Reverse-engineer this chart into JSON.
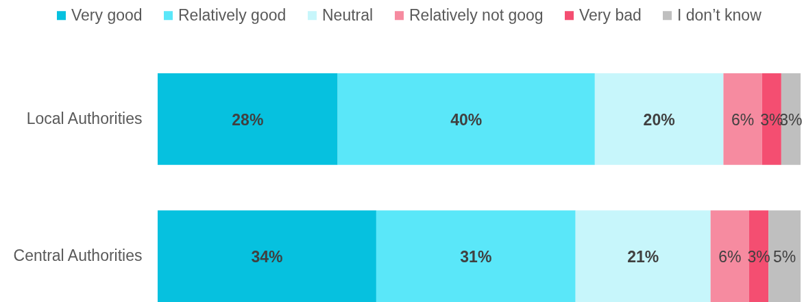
{
  "chart_data": {
    "type": "bar",
    "orientation": "horizontal",
    "stacked": true,
    "categories": [
      "Local Authorities",
      "Central Authorities"
    ],
    "xlim": [
      0,
      100
    ],
    "tick_labels": "y",
    "legend": "top",
    "series": [
      {
        "name": "Very good",
        "color": "#06c1df",
        "values": [
          28,
          34
        ],
        "value_labels": [
          "28%",
          "34%"
        ]
      },
      {
        "name": "Relatively good",
        "color": "#5ae7f9",
        "values": [
          40,
          31
        ],
        "value_labels": [
          "40%",
          "31%"
        ]
      },
      {
        "name": "Neutral",
        "color": "#c7f6fb",
        "values": [
          20,
          21
        ],
        "value_labels": [
          "20%",
          "21%"
        ]
      },
      {
        "name": "Relatively not goog",
        "color": "#f68ba0",
        "values": [
          6,
          6
        ],
        "value_labels": [
          "6%",
          "6%"
        ]
      },
      {
        "name": "Very bad",
        "color": "#f44e71",
        "values": [
          3,
          3
        ],
        "value_labels": [
          "3%",
          "3%"
        ]
      },
      {
        "name": "I don’t know",
        "color": "#bfbfbf",
        "values": [
          3,
          5
        ],
        "value_labels": [
          "3%",
          "5%"
        ]
      }
    ]
  }
}
